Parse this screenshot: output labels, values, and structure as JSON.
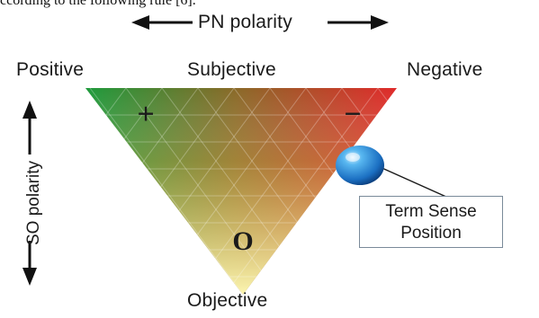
{
  "caption": "ccording to the following rule [6].",
  "pn_polarity": "PN polarity",
  "so_polarity": "SO polarity",
  "corners": {
    "positive": "Positive",
    "subjective": "Subjective",
    "negative": "Negative",
    "objective": "Objective"
  },
  "markers": {
    "plus": "+",
    "minus": "−",
    "zero": "O"
  },
  "term_sense": {
    "line1": "Term Sense",
    "line2": "Position"
  },
  "colors": {
    "positive_green": "#1e9a3c",
    "negative_red": "#e02a2a",
    "objective_yellow": "#fbf5b0",
    "subjective_brown": "#8a5a1e",
    "sphere_blue": "#1b6fc2"
  }
}
